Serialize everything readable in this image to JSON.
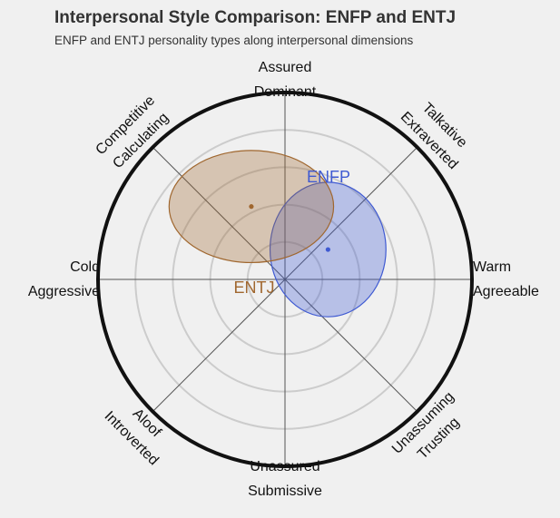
{
  "chart_data": {
    "type": "scatter",
    "title": "Interpersonal Style Comparison: ENFP and ENTJ",
    "subtitle": "ENFP and ENTJ personality types along interpersonal dimensions",
    "axes": {
      "north": [
        "Assured",
        "Dominant"
      ],
      "northeast": [
        "Talkative",
        "Extraverted"
      ],
      "east": [
        "Warm",
        "Agreeable"
      ],
      "southeast": [
        "Unassuming",
        "Trusting"
      ],
      "south": [
        "Unassured",
        "Submissive"
      ],
      "southwest": [
        "Aloof",
        "Introverted"
      ],
      "west": [
        "Cold",
        "Aggressive"
      ],
      "northwest": [
        "Competitive",
        "Calculating"
      ]
    },
    "xlim": [
      -1,
      1
    ],
    "ylim": [
      -1,
      1
    ],
    "rings": 5,
    "grid": true,
    "series": [
      {
        "name": "ENFP",
        "color": "#3f5ad2",
        "center": [
          0.23,
          0.16
        ],
        "spread": [
          0.31,
          0.36
        ]
      },
      {
        "name": "ENTJ",
        "color": "#a0672f",
        "center": [
          -0.18,
          0.39
        ],
        "spread": [
          0.44,
          0.3
        ]
      }
    ]
  }
}
